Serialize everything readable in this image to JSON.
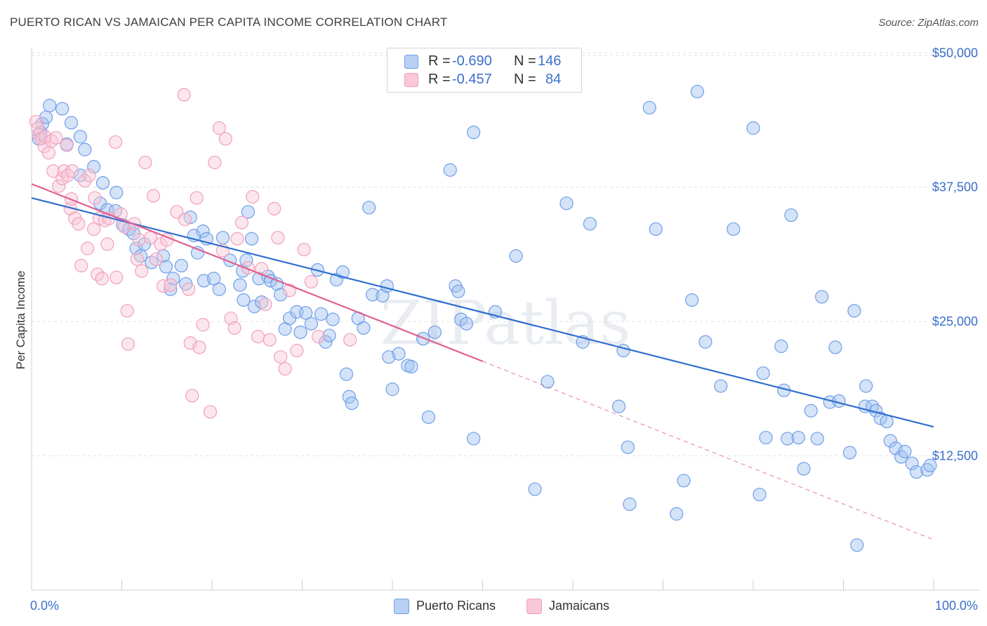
{
  "title": "PUERTO RICAN VS JAMAICAN PER CAPITA INCOME CORRELATION CHART",
  "source": "Source: ZipAtlas.com",
  "watermark": "ZIPatlas",
  "legend": {
    "rows": [
      {
        "r_label": "R =",
        "r_value": "-0.690",
        "n_label": "N =",
        "n_value": "146"
      },
      {
        "r_label": "R =",
        "r_value": "-0.457",
        "n_label": "N =",
        "n_value": "84"
      }
    ]
  },
  "bottom_legend": [
    "Puerto Ricans",
    "Jamaicans"
  ],
  "chart_data": {
    "type": "scatter",
    "title": "PUERTO RICAN VS JAMAICAN PER CAPITA INCOME CORRELATION CHART",
    "ylabel": "Per Capita Income",
    "xlabel": "",
    "x_tick_labels": [
      "0.0%",
      "100.0%"
    ],
    "y_tick_labels": [
      "$12,500",
      "$25,000",
      "$37,500",
      "$50,000"
    ],
    "y_ticks": [
      12500,
      25000,
      37500,
      50000
    ],
    "xlim": [
      0,
      100
    ],
    "ylim": [
      0,
      51000
    ],
    "grid": "horizontal dashed",
    "colors": {
      "puerto_ricans": "#6f9ee8",
      "jamaicans": "#f0a0bc",
      "pr_line": "#2f6fcf",
      "jm_line": "#e06090"
    },
    "series": [
      {
        "name": "Puerto Ricans",
        "r": -0.69,
        "n": 146,
        "trend": {
          "x": [
            0,
            100
          ],
          "y": [
            36500,
            15200
          ]
        },
        "points": [
          [
            0.8,
            42000
          ],
          [
            1.0,
            42600
          ],
          [
            1.2,
            43400
          ],
          [
            1.6,
            44000
          ],
          [
            2.0,
            45100
          ],
          [
            3.4,
            44800
          ],
          [
            4.4,
            43500
          ],
          [
            3.9,
            41500
          ],
          [
            5.4,
            42200
          ],
          [
            5.9,
            41000
          ],
          [
            6.9,
            39400
          ],
          [
            7.9,
            37900
          ],
          [
            5.4,
            38600
          ],
          [
            9.4,
            37000
          ],
          [
            7.6,
            36000
          ],
          [
            8.4,
            35400
          ],
          [
            9.3,
            35300
          ],
          [
            10.1,
            34000
          ],
          [
            10.8,
            33600
          ],
          [
            11.3,
            33200
          ],
          [
            11.6,
            31800
          ],
          [
            12.1,
            31100
          ],
          [
            12.5,
            32200
          ],
          [
            13.3,
            30500
          ],
          [
            14.6,
            31100
          ],
          [
            14.9,
            30100
          ],
          [
            15.7,
            29000
          ],
          [
            16.6,
            30200
          ],
          [
            17.6,
            34700
          ],
          [
            15.4,
            28000
          ],
          [
            18.0,
            33000
          ],
          [
            17.1,
            28500
          ],
          [
            18.4,
            31400
          ],
          [
            19.1,
            28800
          ],
          [
            19.0,
            33400
          ],
          [
            19.4,
            32700
          ],
          [
            20.2,
            29000
          ],
          [
            20.8,
            28000
          ],
          [
            21.2,
            32800
          ],
          [
            22.0,
            30700
          ],
          [
            23.1,
            28400
          ],
          [
            23.8,
            30700
          ],
          [
            23.5,
            27000
          ],
          [
            23.4,
            29700
          ],
          [
            24.7,
            26400
          ],
          [
            24.4,
            32700
          ],
          [
            24.0,
            35200
          ],
          [
            25.2,
            29000
          ],
          [
            25.5,
            26800
          ],
          [
            26.2,
            29200
          ],
          [
            26.5,
            28800
          ],
          [
            27.2,
            28500
          ],
          [
            27.6,
            27500
          ],
          [
            28.1,
            24300
          ],
          [
            28.6,
            25300
          ],
          [
            29.4,
            25900
          ],
          [
            29.8,
            24000
          ],
          [
            30.4,
            25800
          ],
          [
            31.0,
            24800
          ],
          [
            31.7,
            29800
          ],
          [
            32.1,
            25700
          ],
          [
            32.6,
            23100
          ],
          [
            33.0,
            23700
          ],
          [
            33.4,
            25200
          ],
          [
            33.8,
            28900
          ],
          [
            34.5,
            29600
          ],
          [
            34.9,
            20100
          ],
          [
            35.2,
            18000
          ],
          [
            35.5,
            17400
          ],
          [
            36.2,
            25300
          ],
          [
            36.8,
            24400
          ],
          [
            37.8,
            27500
          ],
          [
            37.4,
            35600
          ],
          [
            38.9,
            27400
          ],
          [
            39.6,
            21700
          ],
          [
            39.4,
            28300
          ],
          [
            40.0,
            18700
          ],
          [
            40.7,
            22000
          ],
          [
            41.7,
            20900
          ],
          [
            42.1,
            20800
          ],
          [
            43.4,
            23400
          ],
          [
            44.0,
            16100
          ],
          [
            44.7,
            24000
          ],
          [
            46.4,
            39100
          ],
          [
            47.0,
            28300
          ],
          [
            47.3,
            27800
          ],
          [
            47.6,
            25200
          ],
          [
            48.2,
            24800
          ],
          [
            49.0,
            14100
          ],
          [
            49.0,
            42600
          ],
          [
            51.4,
            25900
          ],
          [
            53.7,
            31100
          ],
          [
            55.8,
            9400
          ],
          [
            57.2,
            19400
          ],
          [
            59.3,
            36000
          ],
          [
            61.1,
            23100
          ],
          [
            61.9,
            34100
          ],
          [
            65.1,
            17100
          ],
          [
            65.6,
            22300
          ],
          [
            66.1,
            13300
          ],
          [
            66.3,
            8000
          ],
          [
            68.5,
            44900
          ],
          [
            69.2,
            33600
          ],
          [
            71.5,
            7100
          ],
          [
            72.3,
            10200
          ],
          [
            73.2,
            27000
          ],
          [
            73.8,
            46400
          ],
          [
            74.7,
            23100
          ],
          [
            76.4,
            19000
          ],
          [
            77.8,
            33600
          ],
          [
            80.0,
            43000
          ],
          [
            80.7,
            8900
          ],
          [
            81.1,
            20200
          ],
          [
            81.4,
            14200
          ],
          [
            83.1,
            22700
          ],
          [
            83.4,
            18600
          ],
          [
            83.8,
            14100
          ],
          [
            84.2,
            34900
          ],
          [
            85.0,
            14200
          ],
          [
            85.6,
            11300
          ],
          [
            86.4,
            16700
          ],
          [
            87.1,
            14100
          ],
          [
            87.6,
            27300
          ],
          [
            88.5,
            17500
          ],
          [
            89.1,
            22600
          ],
          [
            89.5,
            17600
          ],
          [
            90.7,
            12800
          ],
          [
            91.2,
            26000
          ],
          [
            91.5,
            4200
          ],
          [
            92.4,
            17100
          ],
          [
            92.5,
            19000
          ],
          [
            93.2,
            17100
          ],
          [
            93.6,
            16700
          ],
          [
            94.1,
            16000
          ],
          [
            94.8,
            15700
          ],
          [
            95.2,
            13900
          ],
          [
            95.8,
            13200
          ],
          [
            96.4,
            12400
          ],
          [
            96.8,
            12900
          ],
          [
            97.6,
            11800
          ],
          [
            98.1,
            11000
          ],
          [
            99.3,
            11200
          ],
          [
            99.6,
            11600
          ]
        ]
      },
      {
        "name": "Jamaicans",
        "r": -0.457,
        "n": 84,
        "trend": {
          "x": [
            0,
            50
          ],
          "y": [
            37800,
            21300
          ]
        },
        "trend_extension": {
          "x": [
            50,
            100
          ],
          "y": [
            21300,
            4700
          ]
        },
        "points": [
          [
            0.5,
            43600
          ],
          [
            0.7,
            43000
          ],
          [
            0.8,
            42400
          ],
          [
            1.1,
            42000
          ],
          [
            1.4,
            41300
          ],
          [
            1.5,
            42200
          ],
          [
            1.9,
            40700
          ],
          [
            2.2,
            41800
          ],
          [
            2.4,
            39000
          ],
          [
            2.7,
            42100
          ],
          [
            3.0,
            37600
          ],
          [
            3.4,
            38300
          ],
          [
            3.6,
            39000
          ],
          [
            3.9,
            41400
          ],
          [
            4.0,
            38600
          ],
          [
            4.3,
            35500
          ],
          [
            4.4,
            36400
          ],
          [
            4.5,
            39000
          ],
          [
            4.8,
            34600
          ],
          [
            5.2,
            34100
          ],
          [
            5.5,
            30200
          ],
          [
            5.9,
            38100
          ],
          [
            6.2,
            31800
          ],
          [
            6.4,
            38600
          ],
          [
            6.9,
            33600
          ],
          [
            7.0,
            36500
          ],
          [
            7.3,
            29400
          ],
          [
            7.5,
            34600
          ],
          [
            7.8,
            29000
          ],
          [
            8.1,
            34400
          ],
          [
            8.4,
            32200
          ],
          [
            8.6,
            34600
          ],
          [
            9.3,
            41700
          ],
          [
            9.4,
            29100
          ],
          [
            9.9,
            35000
          ],
          [
            10.3,
            33800
          ],
          [
            10.6,
            26000
          ],
          [
            10.7,
            22900
          ],
          [
            11.4,
            34100
          ],
          [
            11.7,
            30800
          ],
          [
            11.9,
            32600
          ],
          [
            12.2,
            29700
          ],
          [
            12.6,
            39800
          ],
          [
            13.2,
            32800
          ],
          [
            13.5,
            36700
          ],
          [
            13.8,
            30800
          ],
          [
            14.3,
            32200
          ],
          [
            14.6,
            28300
          ],
          [
            15.0,
            32600
          ],
          [
            15.4,
            28400
          ],
          [
            16.1,
            35200
          ],
          [
            16.9,
            46100
          ],
          [
            17.0,
            34500
          ],
          [
            17.4,
            28000
          ],
          [
            17.6,
            23000
          ],
          [
            17.8,
            18100
          ],
          [
            18.3,
            36500
          ],
          [
            18.6,
            22600
          ],
          [
            19.0,
            24700
          ],
          [
            19.8,
            16600
          ],
          [
            20.3,
            39800
          ],
          [
            20.8,
            43000
          ],
          [
            21.2,
            31600
          ],
          [
            21.5,
            42000
          ],
          [
            22.1,
            25300
          ],
          [
            22.5,
            24400
          ],
          [
            22.8,
            32700
          ],
          [
            23.3,
            34200
          ],
          [
            24.0,
            30000
          ],
          [
            24.5,
            36600
          ],
          [
            25.1,
            23600
          ],
          [
            25.5,
            29900
          ],
          [
            25.9,
            26600
          ],
          [
            26.4,
            23300
          ],
          [
            26.9,
            35500
          ],
          [
            27.3,
            32800
          ],
          [
            27.6,
            21700
          ],
          [
            28.1,
            20600
          ],
          [
            28.6,
            27900
          ],
          [
            29.4,
            22300
          ],
          [
            30.2,
            31700
          ],
          [
            31.0,
            28700
          ],
          [
            31.8,
            23600
          ],
          [
            35.3,
            23300
          ]
        ]
      }
    ]
  }
}
